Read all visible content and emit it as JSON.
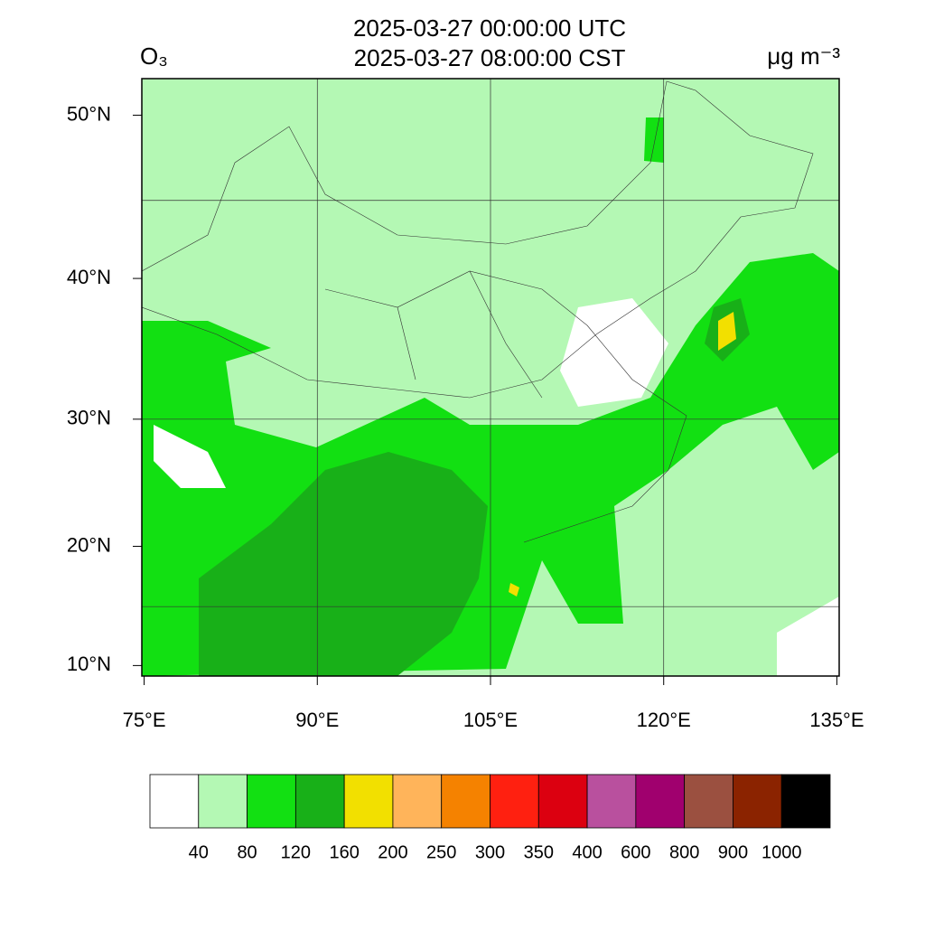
{
  "chart_data": {
    "type": "map",
    "title": [
      "2025-03-27 00:00:00 UTC",
      "2025-03-27 08:00:00 CST"
    ],
    "variable": "O₃",
    "units": "μg m⁻³",
    "background_color": "#b4f8b4",
    "xlim": [
      74.8,
      135.2
    ],
    "ylim": [
      9.1,
      52.0
    ],
    "xticks": [
      {
        "value": 75,
        "label": "75°E"
      },
      {
        "value": 90,
        "label": "90°E"
      },
      {
        "value": 105,
        "label": "105°E"
      },
      {
        "value": 120,
        "label": "120°E"
      },
      {
        "value": 135,
        "label": "135°E"
      }
    ],
    "yticks": [
      {
        "value": 10,
        "label": "10°N"
      },
      {
        "value": 20,
        "label": "20°N"
      },
      {
        "value": 30,
        "label": "30°N"
      },
      {
        "value": 40,
        "label": "40°N"
      },
      {
        "value": 50,
        "label": "50°N"
      }
    ],
    "grid_lon": [
      90,
      105,
      120
    ],
    "grid_lat": [
      15,
      30,
      45
    ],
    "colorbar": {
      "levels": [
        40,
        80,
        120,
        160,
        200,
        250,
        300,
        350,
        400,
        600,
        800,
        900,
        1000
      ],
      "colors": [
        "#ffffff",
        "#b4f8b4",
        "#12e012",
        "#18b018",
        "#f2e000",
        "#ffb45a",
        "#f58200",
        "#ff2010",
        "#dc0010",
        "#b9509e",
        "#a0006e",
        "#9b5040",
        "#8b2300",
        "#000000"
      ]
    }
  }
}
